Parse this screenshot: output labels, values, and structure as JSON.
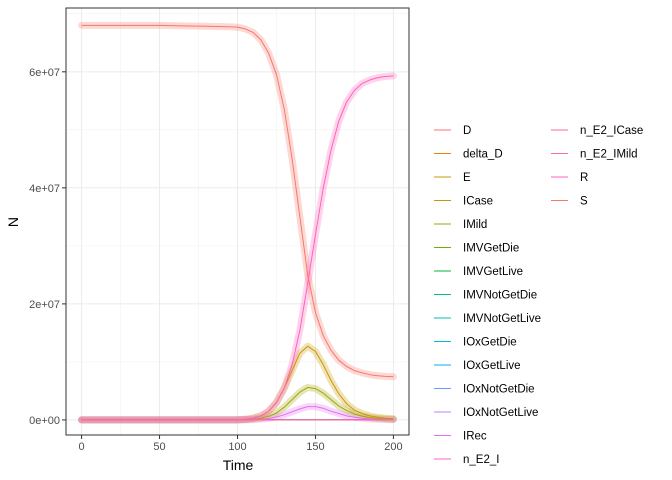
{
  "chart_data": {
    "type": "line",
    "title": "",
    "xlabel": "Time",
    "ylabel": "N",
    "xlim": [
      -10,
      210
    ],
    "ylim": [
      -2600000,
      71000000
    ],
    "x_ticks": [
      0,
      50,
      100,
      150,
      200
    ],
    "x_tick_labels": [
      "0",
      "50",
      "100",
      "150",
      "200"
    ],
    "y_ticks": [
      0,
      20000000,
      40000000,
      60000000
    ],
    "y_tick_labels": [
      "0e+00",
      "2e+07",
      "4e+07",
      "6e+07"
    ],
    "grid": true,
    "legend_position": "right",
    "x": [
      0,
      10,
      20,
      30,
      40,
      50,
      60,
      70,
      80,
      90,
      100,
      105,
      110,
      115,
      120,
      125,
      130,
      135,
      140,
      145,
      150,
      155,
      160,
      165,
      170,
      175,
      180,
      185,
      190,
      195,
      200
    ],
    "series": [
      {
        "name": "D",
        "color": "#F8766D",
        "values": [
          0,
          0,
          0,
          0,
          0,
          0,
          0,
          0,
          0,
          0,
          0,
          0,
          0,
          0,
          0,
          0,
          0,
          0,
          0,
          0,
          0,
          0,
          0,
          0,
          0,
          0,
          0,
          0,
          0,
          0,
          0
        ]
      },
      {
        "name": "delta_D",
        "color": "#E58700",
        "values": [
          0,
          0,
          0,
          0,
          0,
          0,
          0,
          0,
          0,
          0,
          0,
          0,
          0,
          0,
          0,
          0,
          0,
          0,
          0,
          0,
          0,
          0,
          0,
          0,
          0,
          0,
          0,
          0,
          0,
          0,
          0
        ]
      },
      {
        "name": "E",
        "color": "#C99800",
        "values": [
          0,
          0,
          0,
          0,
          0,
          0,
          0,
          0,
          0,
          0,
          0,
          0,
          0,
          0,
          0,
          0,
          0,
          0,
          0,
          0,
          0,
          0,
          0,
          0,
          0,
          0,
          0,
          0,
          0,
          0,
          0
        ]
      },
      {
        "name": "ICase",
        "color": "#C99800",
        "values": [
          0,
          0,
          0,
          0,
          0,
          0,
          0,
          0,
          0,
          0,
          0,
          100000,
          300000,
          700000,
          1500000,
          3000000,
          5500000,
          8500000,
          11500000,
          12700000,
          11800000,
          9500000,
          6800000,
          4500000,
          2800000,
          1700000,
          1100000,
          700000,
          450000,
          300000,
          200000
        ]
      },
      {
        "name": "IMild",
        "color": "#A3A500",
        "values": [
          0,
          0,
          0,
          0,
          0,
          0,
          0,
          0,
          0,
          0,
          0,
          40000,
          120000,
          300000,
          600000,
          1200000,
          2200000,
          3500000,
          4800000,
          5600000,
          5400000,
          4600000,
          3500000,
          2400000,
          1600000,
          1000000,
          650000,
          400000,
          250000,
          160000,
          100000
        ]
      },
      {
        "name": "IMVGetDie",
        "color": "#6BB100",
        "values": [
          0,
          0,
          0,
          0,
          0,
          0,
          0,
          0,
          0,
          0,
          0,
          0,
          0,
          0,
          0,
          0,
          0,
          0,
          0,
          0,
          0,
          0,
          0,
          0,
          0,
          0,
          0,
          0,
          0,
          0,
          0
        ]
      },
      {
        "name": "IMVGetLive",
        "color": "#00BA38",
        "values": [
          0,
          0,
          0,
          0,
          0,
          0,
          0,
          0,
          0,
          0,
          0,
          0,
          0,
          0,
          0,
          0,
          0,
          0,
          0,
          0,
          0,
          0,
          0,
          0,
          0,
          0,
          0,
          0,
          0,
          0,
          0
        ]
      },
      {
        "name": "IMVNotGetDie",
        "color": "#00BF7D",
        "values": [
          0,
          0,
          0,
          0,
          0,
          0,
          0,
          0,
          0,
          0,
          0,
          0,
          0,
          0,
          0,
          0,
          0,
          0,
          0,
          0,
          0,
          0,
          0,
          0,
          0,
          0,
          0,
          0,
          0,
          0,
          0
        ]
      },
      {
        "name": "IMVNotGetLive",
        "color": "#00C0AF",
        "values": [
          0,
          0,
          0,
          0,
          0,
          0,
          0,
          0,
          0,
          0,
          0,
          0,
          0,
          0,
          0,
          0,
          0,
          0,
          0,
          0,
          0,
          0,
          0,
          0,
          0,
          0,
          0,
          0,
          0,
          0,
          0
        ]
      },
      {
        "name": "IOxGetDie",
        "color": "#00BCD8",
        "values": [
          0,
          0,
          0,
          0,
          0,
          0,
          0,
          0,
          0,
          0,
          0,
          0,
          0,
          0,
          0,
          0,
          0,
          0,
          0,
          0,
          0,
          0,
          0,
          0,
          0,
          0,
          0,
          0,
          0,
          0,
          0
        ]
      },
      {
        "name": "IOxGetLive",
        "color": "#00B0F6",
        "values": [
          0,
          0,
          0,
          0,
          0,
          0,
          0,
          0,
          0,
          0,
          0,
          0,
          0,
          0,
          0,
          0,
          0,
          0,
          0,
          0,
          0,
          0,
          0,
          0,
          0,
          0,
          0,
          0,
          0,
          0,
          0
        ]
      },
      {
        "name": "IOxNotGetDie",
        "color": "#619CFF",
        "values": [
          0,
          0,
          0,
          0,
          0,
          0,
          0,
          0,
          0,
          0,
          0,
          0,
          0,
          0,
          0,
          0,
          0,
          0,
          0,
          0,
          0,
          0,
          0,
          0,
          0,
          0,
          0,
          0,
          0,
          0,
          0
        ]
      },
      {
        "name": "IOxNotGetLive",
        "color": "#B983FF",
        "values": [
          0,
          0,
          0,
          0,
          0,
          0,
          0,
          0,
          0,
          0,
          0,
          0,
          0,
          0,
          0,
          0,
          0,
          0,
          0,
          0,
          0,
          0,
          0,
          0,
          0,
          0,
          0,
          0,
          0,
          0,
          0
        ]
      },
      {
        "name": "IRec",
        "color": "#E76BF3",
        "values": [
          0,
          0,
          0,
          0,
          0,
          0,
          0,
          0,
          0,
          0,
          0,
          20000,
          60000,
          120000,
          250000,
          500000,
          900000,
          1400000,
          1900000,
          2300000,
          2300000,
          2000000,
          1500000,
          1100000,
          700000,
          450000,
          300000,
          180000,
          110000,
          70000,
          40000
        ]
      },
      {
        "name": "n_E2_I",
        "color": "#FD61D1",
        "values": [
          0,
          0,
          0,
          0,
          0,
          0,
          0,
          0,
          0,
          0,
          0,
          0,
          0,
          0,
          0,
          0,
          0,
          0,
          0,
          0,
          0,
          0,
          0,
          0,
          0,
          0,
          0,
          0,
          0,
          0,
          0
        ]
      },
      {
        "name": "n_E2_ICase",
        "color": "#FF67A4",
        "values": [
          0,
          0,
          0,
          0,
          0,
          0,
          0,
          0,
          0,
          0,
          0,
          0,
          0,
          0,
          0,
          0,
          0,
          0,
          0,
          0,
          0,
          0,
          0,
          0,
          0,
          0,
          0,
          0,
          0,
          0,
          0
        ]
      },
      {
        "name": "n_E2_IMild",
        "color": "#FF6C91",
        "values": [
          0,
          0,
          0,
          0,
          0,
          0,
          0,
          0,
          0,
          0,
          0,
          0,
          0,
          0,
          0,
          0,
          0,
          0,
          0,
          0,
          0,
          0,
          0,
          0,
          0,
          0,
          0,
          0,
          0,
          0,
          0
        ]
      },
      {
        "name": "R",
        "color": "#FF62BC",
        "values": [
          0,
          0,
          0,
          0,
          0,
          0,
          0,
          0,
          0,
          0,
          0,
          100000,
          300000,
          700000,
          1500000,
          3000000,
          5500000,
          9500000,
          15500000,
          23500000,
          32000000,
          40000000,
          46500000,
          51500000,
          54800000,
          56800000,
          58000000,
          58600000,
          59000000,
          59200000,
          59300000
        ]
      },
      {
        "name": "S",
        "color": "#F8766D",
        "values": [
          68000000,
          68000000,
          68000000,
          68000000,
          68000000,
          68000000,
          67950000,
          67900000,
          67850000,
          67800000,
          67700000,
          67400000,
          66800000,
          65500000,
          63200000,
          59500000,
          53500000,
          45000000,
          35000000,
          25000000,
          18500000,
          14500000,
          12000000,
          10300000,
          9200000,
          8500000,
          8100000,
          7800000,
          7600000,
          7500000,
          7450000
        ]
      }
    ]
  }
}
